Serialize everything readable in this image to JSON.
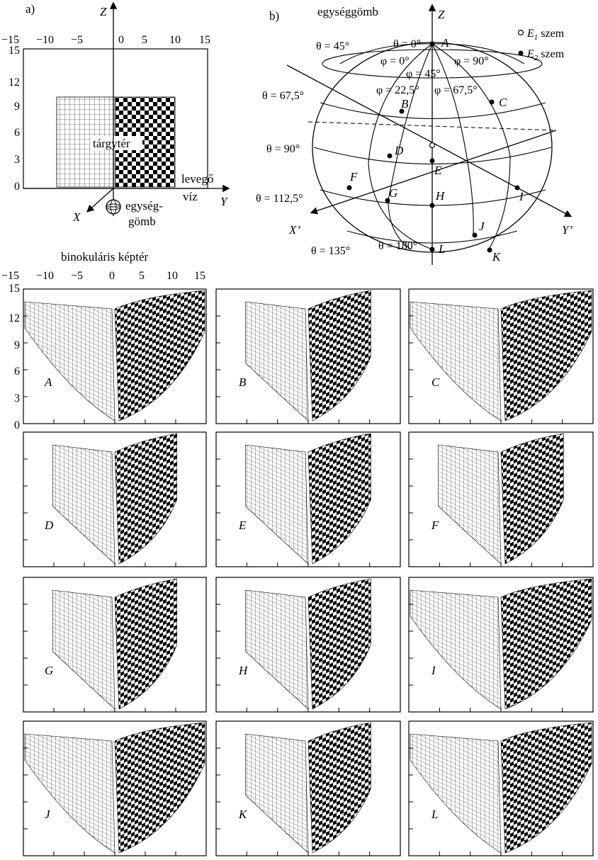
{
  "panel_a": {
    "label": "a)",
    "z_label": "Z",
    "y_label": "Y",
    "x_label": "X",
    "x_ticks": [
      "−15",
      "−10",
      "−5",
      "0",
      "5",
      "10",
      "15"
    ],
    "y_ticks": [
      "15",
      "12",
      "9",
      "6",
      "3",
      "0"
    ],
    "object_label": "tárgytér",
    "air_label": "levegő",
    "water_label": "víz",
    "sphere_label_1": "egység-",
    "sphere_label_2": "gömb"
  },
  "panel_b": {
    "label": "b)",
    "title": "egységgömb",
    "z_label": "Z",
    "x_label": "X’",
    "y_label": "Y’",
    "legend": [
      {
        "symbol": "open-circle",
        "text_pre": "E",
        "sub": "1",
        "text_post": " szem"
      },
      {
        "symbol": "filled-circle",
        "text_pre": "E",
        "sub": "2",
        "text_post": " szem"
      }
    ],
    "theta_labels": [
      "θ = 45°",
      "θ = 67,5°",
      "θ = 90°",
      "θ = 112,5°",
      "θ = 135°",
      "θ = 180°"
    ],
    "theta_zero": "θ = 0°",
    "phi_labels": [
      "φ = 0°",
      "φ = 45°",
      "φ = 90°",
      "φ = 22,5°",
      "φ = 67,5°"
    ],
    "points": [
      "A",
      "B",
      "C",
      "D",
      "E",
      "F",
      "G",
      "H",
      "I",
      "J",
      "K",
      "L"
    ]
  },
  "binocular": {
    "title": "binokuláris képtér",
    "x_ticks": [
      "−15",
      "−10",
      "−5",
      "0",
      "5",
      "10",
      "15"
    ],
    "y_ticks": [
      "15",
      "12",
      "9",
      "6",
      "3",
      "0"
    ]
  },
  "subplots": [
    "A",
    "B",
    "C",
    "D",
    "E",
    "F",
    "G",
    "H",
    "I",
    "J",
    "K",
    "L"
  ],
  "colors": {
    "ink": "#000000",
    "paper": "#ffffff"
  }
}
